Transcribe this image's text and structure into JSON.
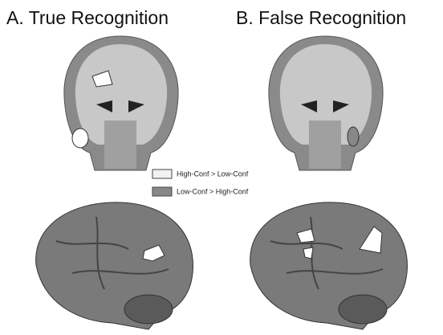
{
  "panels": [
    {
      "title": "A. True Recognition"
    },
    {
      "title": "B. False Recognition"
    }
  ],
  "legend": [
    {
      "label": "High-Conf > Low-Conf"
    },
    {
      "label": "Low-Conf > High-Conf"
    }
  ]
}
